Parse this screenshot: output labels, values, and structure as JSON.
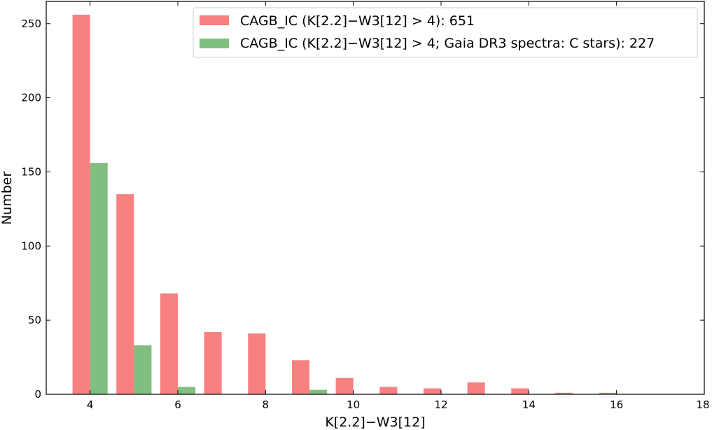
{
  "chart_data": {
    "type": "bar",
    "xlabel": "K[2.2]−W3[12]",
    "ylabel": "Number",
    "xlim": [
      3,
      18
    ],
    "ylim": [
      0,
      265
    ],
    "xticks": [
      4,
      6,
      8,
      10,
      12,
      14,
      16,
      18
    ],
    "yticks": [
      0,
      50,
      100,
      150,
      200,
      250
    ],
    "bar_width": 0.4,
    "legend_position": "top-right",
    "series": [
      {
        "name": "CAGB_IC (K[2.2]−W3[12] > 4): 651",
        "color": "#f78080",
        "x": [
          3.8,
          4.8,
          5.8,
          6.8,
          7.8,
          8.8,
          9.8,
          10.8,
          11.8,
          12.8,
          13.8,
          14.8,
          15.8
        ],
        "values": [
          256,
          135,
          68,
          42,
          41,
          23,
          11,
          5,
          4,
          8,
          4,
          1,
          1
        ]
      },
      {
        "name": "CAGB_IC (K[2.2]−W3[12] > 4; Gaia DR3 spectra: C stars): 227",
        "color": "#80bf80",
        "x": [
          4.2,
          5.2,
          6.2,
          7.2,
          8.2,
          9.2,
          10.2,
          11.2,
          12.2,
          13.2,
          14.2,
          15.2,
          16.2
        ],
        "values": [
          156,
          33,
          5,
          0,
          0,
          3,
          0,
          0,
          0,
          0,
          0,
          0,
          0
        ]
      }
    ]
  }
}
